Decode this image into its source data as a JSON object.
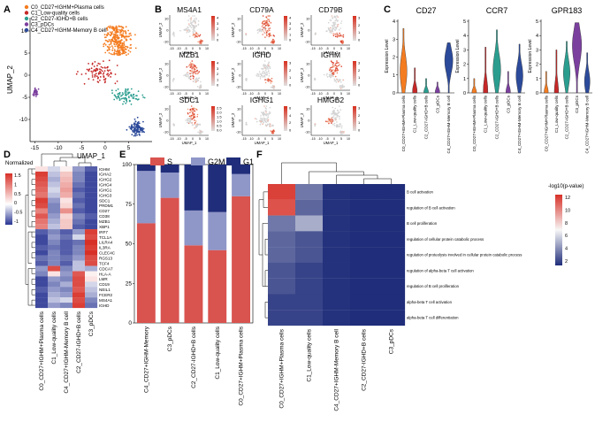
{
  "panel_letters": {
    "A": "A",
    "B": "B",
    "C": "C",
    "D": "D",
    "E": "E",
    "F": "F"
  },
  "colors": {
    "c0": "#f47c20",
    "c1": "#c62828",
    "c2": "#2a9d8f",
    "c3": "#7b3f9e",
    "c4": "#2c4a9a",
    "grey": "#d3d3d3",
    "featHigh": "#d7301f",
    "bar_S": "#d9534f",
    "bar_G2M": "#8f96c8",
    "bar_G1": "#1f2d7a",
    "heat_high": "#d73027",
    "heat_mid": "#ffffff",
    "heat_low": "#283593"
  },
  "chart_data": [
    {
      "panel": "A",
      "type": "scatter",
      "title": "",
      "xlabel": "UMAP_1",
      "ylabel": "UMAP_2",
      "xticks": [
        "-15",
        "-10",
        "-5",
        "0",
        "5"
      ],
      "yticks": [
        "-10",
        "-5",
        "0",
        "5",
        "10"
      ],
      "xlim": [
        -16,
        10
      ],
      "ylim": [
        -15,
        13
      ],
      "legend": [
        "C0_CD27+IGHM+Plasma cells",
        "C1_Low-quality cells",
        "C2_CD27-IGHD+B cells",
        "C3_pDCs",
        "C4_CD27+IGHM-Memory B cell"
      ],
      "clusters": [
        {
          "name": "C0",
          "cx": 2.6,
          "cy": 6.5,
          "sx": 1.6,
          "sy": 3.0,
          "n": 300
        },
        {
          "name": "C1",
          "cx": -1.5,
          "cy": 0.5,
          "sx": 2.0,
          "sy": 1.2,
          "n": 90
        },
        {
          "name": "C2",
          "cx": 4.5,
          "cy": -4.8,
          "sx": 1.6,
          "sy": 0.8,
          "n": 80
        },
        {
          "name": "C3",
          "cx": -14.8,
          "cy": -3.8,
          "sx": 0.3,
          "sy": 0.5,
          "n": 30
        },
        {
          "name": "C4",
          "cx": 6.9,
          "cy": -12.0,
          "sx": 0.8,
          "sy": 0.8,
          "n": 110
        }
      ]
    },
    {
      "panel": "B",
      "type": "scatter",
      "title": "Feature plots",
      "genes": [
        {
          "name": "MS4A1",
          "scale": [
            "4",
            "3",
            "2",
            "1",
            "0"
          ],
          "hot": [
            "C2",
            "C4"
          ]
        },
        {
          "name": "CD79A",
          "scale": [
            "4",
            "3",
            "2",
            "1",
            "0"
          ],
          "hot": [
            "C0",
            "C2",
            "C4"
          ]
        },
        {
          "name": "CD79B",
          "scale": [
            "3",
            "2",
            "1",
            "0"
          ],
          "hot": [
            "C2",
            "C4"
          ]
        },
        {
          "name": "MZB1",
          "scale": [
            "4",
            "3",
            "2",
            "1",
            "0"
          ],
          "hot": [
            "C0"
          ]
        },
        {
          "name": "IGHD",
          "scale": [
            "3",
            "2",
            "1",
            "0"
          ],
          "hot": [
            "C2"
          ]
        },
        {
          "name": "IGHM",
          "scale": [
            "3",
            "2",
            "1",
            "0"
          ],
          "hot": [
            "C0"
          ]
        },
        {
          "name": "SDC1",
          "scale": [
            "2.5",
            "2.0",
            "1.5",
            "1.0",
            "0.5",
            "0.0"
          ],
          "hot": [
            "C0"
          ]
        },
        {
          "name": "IGHG1",
          "scale": [
            "6",
            "4",
            "2",
            "0"
          ],
          "hot": [
            "C4"
          ]
        },
        {
          "name": "HMGB2",
          "scale": [
            "3",
            "2",
            "1",
            "0"
          ],
          "hot": [
            "C1"
          ]
        }
      ],
      "xlabel": "UMAP_1",
      "ylabel": "UMAP_2",
      "xticks": [
        "-15",
        "-10",
        "-5",
        "0",
        "5",
        "10"
      ],
      "yticks": [
        "10",
        "0",
        "-10"
      ]
    },
    {
      "panel": "C",
      "type": "violin",
      "ylabel": "Expression Level",
      "categories": [
        "C0_CD27+IGHM+Plasma cells",
        "C1_Low-quality cells",
        "C2_CD27-IGHD+B cells",
        "C3_pDCs",
        "C4_CD27+IGHM-Memory B cell"
      ],
      "genes": [
        {
          "name": "CD27",
          "ylim": [
            0,
            4
          ],
          "yticks": [
            "0",
            "1",
            "2",
            "3",
            "4"
          ],
          "top": [
            3.6,
            1.4,
            0.8,
            0.6,
            2.8
          ],
          "med": [
            1.2,
            0.1,
            0.05,
            0.05,
            1.8
          ]
        },
        {
          "name": "CCR7",
          "ylim": [
            0,
            5
          ],
          "yticks": [
            "0",
            "1",
            "2",
            "3",
            "4",
            "5"
          ],
          "top": [
            1.0,
            3.2,
            4.4,
            1.5,
            3.4
          ],
          "med": [
            0.05,
            0.1,
            1.6,
            0.05,
            1.2
          ]
        },
        {
          "name": "GPR183",
          "ylim": [
            0,
            5
          ],
          "yticks": [
            "0",
            "1",
            "2",
            "3",
            "4",
            "5"
          ],
          "top": [
            1.5,
            3.0,
            3.6,
            4.9,
            2.8
          ],
          "med": [
            0.05,
            0.1,
            1.4,
            3.3,
            0.8
          ]
        }
      ]
    },
    {
      "panel": "D",
      "type": "heatmap",
      "legend_title": "Normalized expression",
      "scale": [
        "1.5",
        "1",
        "0.5",
        "0",
        "-0.5",
        "-1"
      ],
      "columns": [
        "C0_CD27+IGHM+Plasma cells",
        "C1_Low-quality cells",
        "C4_CD27+IGHM-Memory B cell",
        "C2_CD27-IGHD+B cells",
        "C3_pDCs"
      ],
      "rows": [
        "IGHM",
        "IGHA2",
        "IGHG2",
        "IGHG4",
        "IGHG1",
        "IGHG3",
        "SDC1",
        "PRDM1",
        "CD27",
        "CD38",
        "MZB1",
        "XBP1",
        "IRF7",
        "TCL1A",
        "LILRA4",
        "IL3RA",
        "CLEC4C",
        "RGS13",
        "TCF4",
        "CDCA7",
        "HLA-A",
        "LMR",
        "CD19",
        "NEIL1",
        "FCER2",
        "MS4A1",
        "IGHD"
      ],
      "values": [
        [
          0.2,
          -0.2,
          0.1,
          -0.5,
          -0.8
        ],
        [
          1.4,
          -0.3,
          0.4,
          -0.6,
          -0.9
        ],
        [
          1.3,
          -0.4,
          0.5,
          -0.6,
          -0.9
        ],
        [
          1.2,
          -0.3,
          0.6,
          -0.7,
          -0.9
        ],
        [
          1.1,
          -0.2,
          0.7,
          -0.8,
          -0.9
        ],
        [
          1.0,
          -0.3,
          0.6,
          -0.7,
          -0.9
        ],
        [
          1.4,
          -0.5,
          0.2,
          -0.8,
          -0.9
        ],
        [
          1.3,
          -0.6,
          0.3,
          -0.7,
          -0.9
        ],
        [
          0.9,
          -0.6,
          0.8,
          -0.8,
          -0.9
        ],
        [
          1.2,
          -0.5,
          0.3,
          -0.6,
          -0.8
        ],
        [
          1.0,
          -0.4,
          0.4,
          -0.7,
          -0.9
        ],
        [
          0.9,
          -0.3,
          0.4,
          -0.8,
          -0.9
        ],
        [
          -0.8,
          -0.6,
          -0.8,
          -0.5,
          1.4
        ],
        [
          -0.9,
          -0.5,
          -0.7,
          -0.2,
          1.3
        ],
        [
          -0.9,
          -0.6,
          -0.8,
          -0.7,
          1.5
        ],
        [
          -0.8,
          -0.7,
          -0.8,
          -0.6,
          1.4
        ],
        [
          -0.9,
          -0.6,
          -0.8,
          -0.6,
          1.5
        ],
        [
          -0.7,
          -0.6,
          -0.7,
          -0.5,
          1.3
        ],
        [
          -0.8,
          -0.6,
          -0.8,
          -0.3,
          1.3
        ],
        [
          -0.5,
          1.3,
          -0.6,
          -0.3,
          -0.4
        ],
        [
          -0.6,
          0.2,
          -0.5,
          1.2,
          0.1
        ],
        [
          -0.9,
          -0.5,
          -0.6,
          1.3,
          0.2
        ],
        [
          -0.9,
          -0.6,
          -0.4,
          1.3,
          -0.2
        ],
        [
          -0.8,
          -0.5,
          -0.6,
          1.2,
          -0.3
        ],
        [
          -0.9,
          -0.4,
          -0.5,
          1.4,
          -0.4
        ],
        [
          -0.9,
          -0.3,
          -0.2,
          1.3,
          -0.6
        ],
        [
          -0.9,
          -0.5,
          -0.6,
          1.4,
          -0.7
        ]
      ]
    },
    {
      "panel": "E",
      "type": "bar",
      "stacked": true,
      "legend": [
        "S",
        "G2M",
        "G1"
      ],
      "categories": [
        "C4_CD27+IGHM-Memory",
        "C3_pDCs",
        "C2_CD27-IGHD+B cells",
        "C1_Low-quality cells",
        "C0_CD27+IGHM+Plasma cells"
      ],
      "yticks": [
        "0",
        "25",
        "50",
        "75",
        "100"
      ],
      "ylim": [
        0,
        100
      ],
      "series": [
        {
          "name": "S",
          "values": [
            63,
            79,
            49,
            46,
            80
          ]
        },
        {
          "name": "G2M",
          "values": [
            33,
            16,
            22,
            24,
            14
          ]
        },
        {
          "name": "G1",
          "values": [
            4,
            5,
            29,
            30,
            6
          ]
        }
      ]
    },
    {
      "panel": "F",
      "type": "heatmap",
      "legend_title": "-log10(p-value)",
      "scale": [
        "12",
        "10",
        "8",
        "6",
        "4",
        "2"
      ],
      "vmin": 1.5,
      "vmax": 13,
      "columns": [
        "C0_CD27+IGHM+Plasma cells",
        "C1_Low-quality cells",
        "C4_CD27+IGHM-Memory B cell",
        "C2_CD27-IGHD+B cells",
        "C3_pDCs"
      ],
      "rows": [
        "B cell activation",
        "regulation of B cell activation",
        "B cell proliferation",
        "regulation of cellular protein catabolic process",
        "regulation of proteolysis involved in cellular protein catabolic process",
        "regulation of alpha-beta T cell activation",
        "regulation of B cell proliferation",
        "alpha-beta T cell activation",
        "alpha-beta T cell differentiation"
      ],
      "values": [
        [
          12.5,
          4.5,
          2.5,
          2.0,
          2.0
        ],
        [
          12.0,
          4.0,
          2.5,
          2.0,
          2.0
        ],
        [
          4.5,
          6.0,
          2.5,
          2.0,
          2.0
        ],
        [
          4.0,
          3.5,
          2.5,
          2.0,
          2.0
        ],
        [
          4.0,
          3.5,
          2.5,
          2.0,
          2.0
        ],
        [
          3.5,
          3.0,
          2.5,
          2.0,
          2.0
        ],
        [
          3.5,
          3.0,
          2.5,
          2.0,
          2.0
        ],
        [
          3.0,
          3.0,
          2.5,
          2.0,
          2.0
        ],
        [
          3.0,
          3.0,
          2.5,
          2.0,
          2.0
        ]
      ]
    }
  ]
}
